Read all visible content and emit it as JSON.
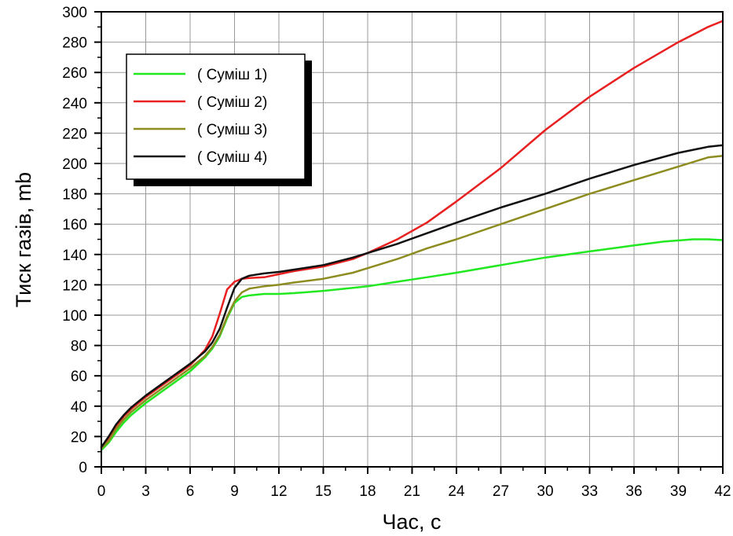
{
  "chart_data": {
    "type": "line",
    "title": "",
    "xlabel": "Час, с",
    "ylabel": "Тиск газів, mb",
    "xlim": [
      0,
      42
    ],
    "ylim": [
      0,
      300
    ],
    "x_ticks": [
      0,
      3,
      6,
      9,
      12,
      15,
      18,
      21,
      24,
      27,
      30,
      33,
      36,
      39,
      42
    ],
    "y_ticks": [
      0,
      20,
      40,
      60,
      80,
      100,
      120,
      140,
      160,
      180,
      200,
      220,
      240,
      260,
      280,
      300
    ],
    "grid": true,
    "legend_position": "top-left",
    "series": [
      {
        "name": "( Суміш 1)",
        "color": "#22e822",
        "x": [
          0,
          0.5,
          1,
          1.5,
          2,
          3,
          4,
          5,
          6,
          7,
          7.5,
          8,
          8.5,
          9,
          9.5,
          10,
          11,
          12,
          13,
          15,
          17,
          18,
          20,
          22,
          24,
          27,
          30,
          33,
          36,
          38,
          40,
          41,
          42
        ],
        "y": [
          11,
          16,
          23,
          29,
          34,
          42,
          49,
          56,
          63,
          72,
          78,
          86,
          98,
          108,
          112,
          113,
          114,
          114,
          114.5,
          116,
          118,
          119,
          122,
          125,
          128,
          133,
          138,
          142,
          146,
          148.5,
          150,
          150,
          149.5
        ]
      },
      {
        "name": "( Суміш 2)",
        "color": "#e82020",
        "x": [
          0,
          0.5,
          1,
          1.5,
          2,
          3,
          4,
          5,
          6,
          7,
          7.5,
          8,
          8.5,
          9,
          9.5,
          10,
          11,
          12,
          13,
          15,
          17,
          18,
          20,
          22,
          24,
          27,
          30,
          33,
          36,
          39,
          41,
          42
        ],
        "y": [
          13,
          19,
          27,
          33,
          38,
          46,
          53,
          60,
          67,
          77,
          86,
          101,
          117,
          122,
          124,
          124.5,
          125,
          127,
          129,
          132,
          137,
          141,
          150,
          161,
          175,
          197,
          222,
          244,
          263,
          280,
          290,
          294
        ]
      },
      {
        "name": "( Суміш 3)",
        "color": "#8c8c20",
        "x": [
          0,
          0.5,
          1,
          1.5,
          2,
          3,
          4,
          5,
          6,
          7,
          7.5,
          8,
          8.5,
          9,
          9.5,
          10,
          11,
          12,
          13,
          15,
          17,
          18,
          20,
          22,
          24,
          27,
          30,
          33,
          36,
          39,
          41,
          42
        ],
        "y": [
          12,
          17,
          25,
          31,
          36,
          44,
          51,
          58,
          65,
          73,
          79,
          87,
          99,
          109,
          115,
          117.5,
          119,
          120,
          121.5,
          124,
          128,
          131,
          137,
          144,
          150,
          160,
          170,
          180,
          189,
          198,
          204,
          205
        ]
      },
      {
        "name": "( Суміш 4)",
        "color": "#111111",
        "x": [
          0,
          0.5,
          1,
          1.5,
          2,
          3,
          4,
          5,
          6,
          7,
          7.5,
          8,
          8.5,
          9,
          9.5,
          10,
          11,
          12,
          13,
          15,
          17,
          18,
          20,
          22,
          24,
          27,
          30,
          33,
          36,
          39,
          41,
          42
        ],
        "y": [
          13,
          20,
          28,
          34,
          39,
          47,
          54,
          61,
          68,
          76,
          82,
          91,
          105,
          118,
          124,
          126,
          127.5,
          128.5,
          130,
          133,
          138,
          141,
          147,
          154,
          161,
          171,
          180,
          190,
          199,
          207,
          211,
          212
        ]
      }
    ]
  }
}
